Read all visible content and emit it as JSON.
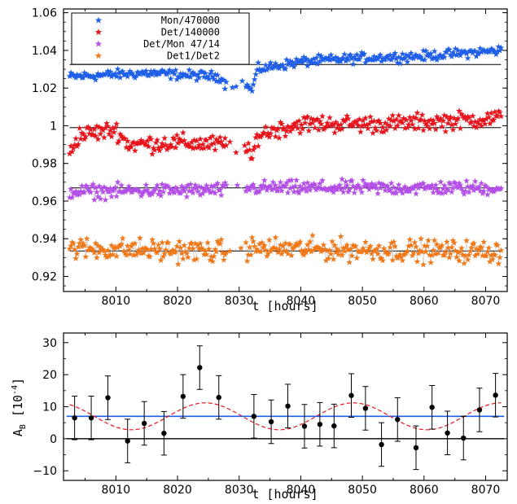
{
  "chart_data": [
    {
      "type": "scatter",
      "title": "",
      "xlabel": "t [hours]",
      "ylabel": "",
      "xlim": [
        8001.5,
        8073.5
      ],
      "ylim": [
        0.912,
        1.062
      ],
      "xticks": [
        8010,
        8020,
        8030,
        8040,
        8050,
        8060,
        8070
      ],
      "xtick_labels": [
        "8010",
        "8020",
        "8030",
        "8040",
        "8050",
        "8060",
        "8070"
      ],
      "yticks": [
        0.92,
        0.94,
        0.96,
        0.98,
        1.0,
        1.02,
        1.04,
        1.06
      ],
      "ytick_labels": [
        "0.92",
        "0.94",
        "0.96",
        "0.98",
        "1",
        "1.02",
        "1.04",
        "1.06"
      ],
      "legend_position": "top-left",
      "grid": false,
      "gap": [
        8028.0,
        8031.0
      ],
      "x_range": [
        8002.5,
        8072.5
      ],
      "series": [
        {
          "name": "Mon/470000",
          "color": "#1f5fe8",
          "reference": 1.0325,
          "trend": [
            [
              8002.5,
              1.026
            ],
            [
              8015,
              1.028
            ],
            [
              8027,
              1.026
            ],
            [
              8028,
              1.021
            ],
            [
              8031,
              1.023
            ],
            [
              8032,
              1.018
            ],
            [
              8033,
              1.03
            ],
            [
              8040,
              1.034
            ],
            [
              8050,
              1.036
            ],
            [
              8060,
              1.037
            ],
            [
              8072.5,
              1.04
            ]
          ],
          "noise": 0.0022
        },
        {
          "name": "Det/140000",
          "color": "#e8141c",
          "reference": 0.999,
          "trend": [
            [
              8002.5,
              0.986
            ],
            [
              8004,
              0.995
            ],
            [
              8010,
              0.998
            ],
            [
              8012,
              0.99
            ],
            [
              8020,
              0.991
            ],
            [
              8027,
              0.99
            ],
            [
              8031,
              0.988
            ],
            [
              8032,
              0.982
            ],
            [
              8033,
              0.995
            ],
            [
              8036,
              0.998
            ],
            [
              8040,
              1.001
            ],
            [
              8055,
              1.001
            ],
            [
              8072.5,
              1.004
            ]
          ],
          "noise": 0.004
        },
        {
          "name": "Det/Mon 47/14",
          "color": "#b44ee8",
          "reference": 0.967,
          "trend": [
            [
              8002.5,
              0.965
            ],
            [
              8030,
              0.966
            ],
            [
              8031,
              0.967
            ],
            [
              8072.5,
              0.967
            ]
          ],
          "noise": 0.0032
        },
        {
          "name": "Det1/Det2",
          "color": "#f07818",
          "reference": 0.9335,
          "trend": [
            [
              8002.5,
              0.935
            ],
            [
              8030,
              0.933
            ],
            [
              8031,
              0.935
            ],
            [
              8072.5,
              0.933
            ]
          ],
          "noise": 0.005
        }
      ]
    },
    {
      "type": "scatter",
      "title": "",
      "xlabel": "t [hours]",
      "ylabel": "A",
      "ylabel_sub": "B",
      "ylabel_unit": "[10",
      "ylabel_exp": "-4",
      "ylabel_close": "]",
      "xlim": [
        8001.5,
        8073.5
      ],
      "ylim": [
        -13,
        33
      ],
      "xticks": [
        8010,
        8020,
        8030,
        8040,
        8050,
        8060,
        8070
      ],
      "xtick_labels": [
        "8010",
        "8020",
        "8030",
        "8040",
        "8050",
        "8060",
        "8070"
      ],
      "yticks": [
        -10,
        0,
        10,
        20,
        30
      ],
      "ytick_labels": [
        "−10",
        "0",
        "10",
        "20",
        "30"
      ],
      "grid": false,
      "constant_fit": 7.0,
      "sine_fit": {
        "offset": 7.0,
        "amplitude": 4.2,
        "period": 24,
        "peak_x": 8024.5
      },
      "points": [
        {
          "x": 8003.3,
          "y": 6.5,
          "err": 6.8
        },
        {
          "x": 8006.0,
          "y": 6.5,
          "err": 6.8
        },
        {
          "x": 8008.7,
          "y": 12.8,
          "err": 6.8
        },
        {
          "x": 8011.9,
          "y": -0.7,
          "err": 6.8
        },
        {
          "x": 8014.6,
          "y": 4.8,
          "err": 6.8
        },
        {
          "x": 8017.8,
          "y": 1.7,
          "err": 6.8
        },
        {
          "x": 8020.9,
          "y": 13.2,
          "err": 6.8
        },
        {
          "x": 8023.6,
          "y": 22.2,
          "err": 6.8
        },
        {
          "x": 8026.7,
          "y": 12.9,
          "err": 6.8
        },
        {
          "x": 8032.4,
          "y": 7.0,
          "err": 6.8
        },
        {
          "x": 8035.2,
          "y": 5.3,
          "err": 6.8
        },
        {
          "x": 8037.9,
          "y": 10.2,
          "err": 6.8
        },
        {
          "x": 8040.6,
          "y": 3.9,
          "err": 6.8
        },
        {
          "x": 8043.1,
          "y": 4.5,
          "err": 6.8
        },
        {
          "x": 8045.4,
          "y": 4.0,
          "err": 6.8
        },
        {
          "x": 8048.2,
          "y": 13.5,
          "err": 6.8
        },
        {
          "x": 8050.5,
          "y": 9.5,
          "err": 6.8
        },
        {
          "x": 8053.1,
          "y": -1.8,
          "err": 6.8
        },
        {
          "x": 8055.7,
          "y": 6.0,
          "err": 6.8
        },
        {
          "x": 8058.7,
          "y": -2.8,
          "err": 6.8
        },
        {
          "x": 8061.3,
          "y": 9.8,
          "err": 6.8
        },
        {
          "x": 8063.8,
          "y": 1.8,
          "err": 6.8
        },
        {
          "x": 8066.4,
          "y": 0.2,
          "err": 6.8
        },
        {
          "x": 8069.0,
          "y": 9.0,
          "err": 6.8
        },
        {
          "x": 8071.6,
          "y": 13.6,
          "err": 6.8
        }
      ]
    }
  ]
}
